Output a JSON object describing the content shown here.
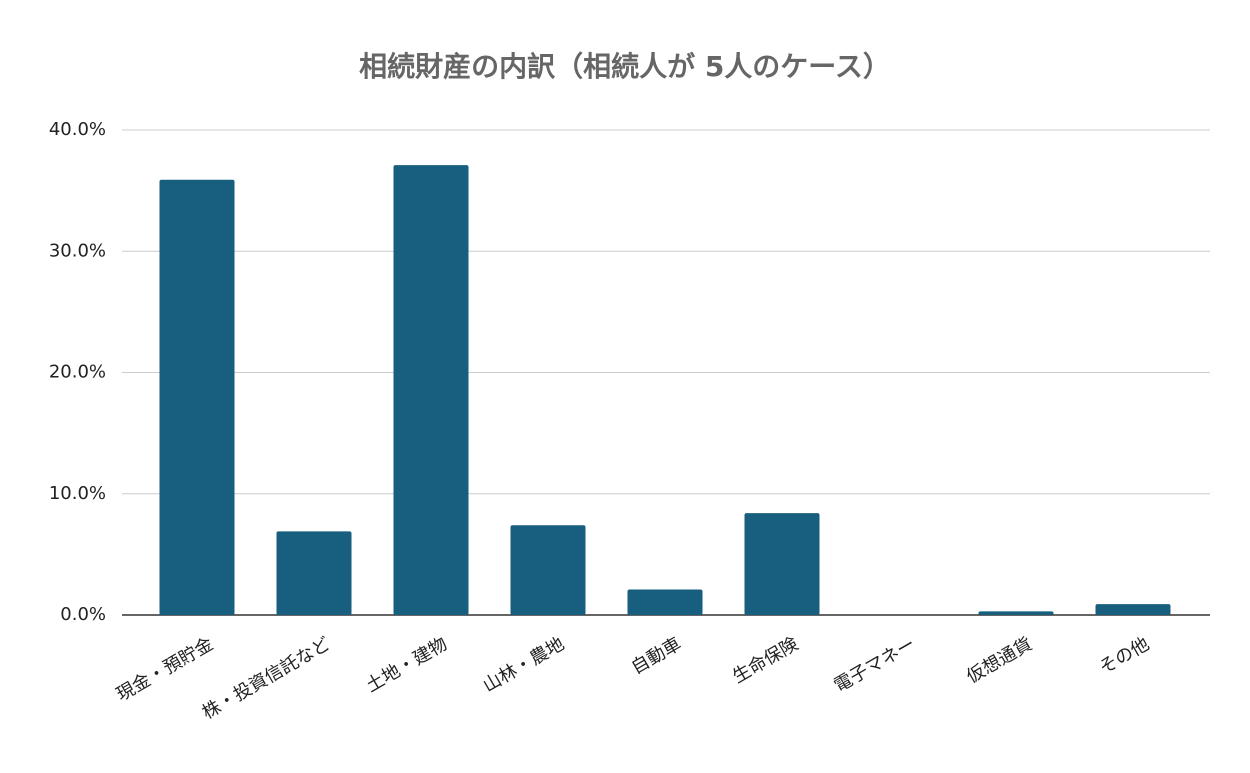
{
  "chart_data": {
    "type": "bar",
    "title": "相続財産の内訳（相続人が 5人のケース）",
    "categories": [
      "現金・預貯金",
      "株・投資信託など",
      "土地・建物",
      "山林・農地",
      "自動車",
      "生命保険",
      "電子マネー",
      "仮想通貨",
      "その他"
    ],
    "values": [
      35.9,
      6.9,
      37.1,
      7.4,
      2.1,
      8.4,
      0,
      0.3,
      0.9
    ],
    "color": "#175e7f",
    "ylim": [
      0,
      40
    ],
    "yticks": [
      {
        "value": 0,
        "label": "0.0%"
      },
      {
        "value": 10,
        "label": "10.0%"
      },
      {
        "value": 20,
        "label": "20.0%"
      },
      {
        "value": 30,
        "label": "30.0%"
      },
      {
        "value": 40,
        "label": "40.0%"
      }
    ],
    "grid": true
  }
}
